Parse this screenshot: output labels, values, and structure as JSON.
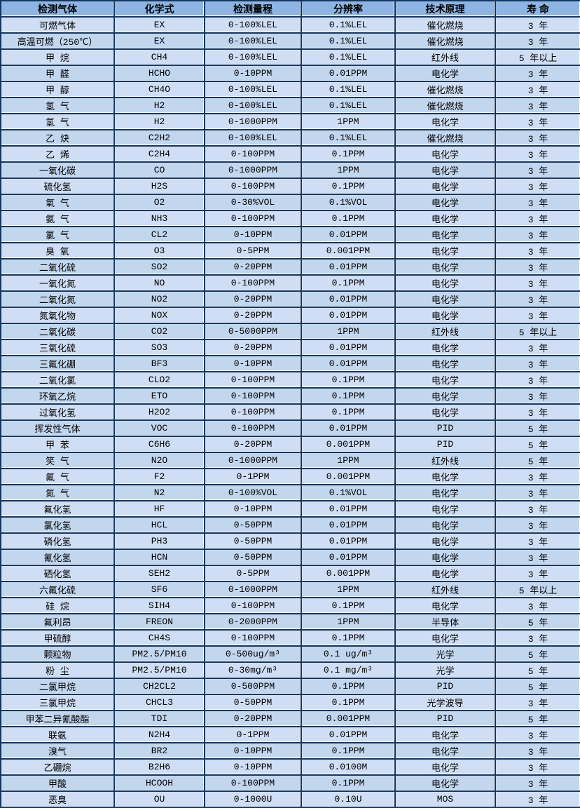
{
  "table": {
    "columns": [
      "检测气体",
      "化学式",
      "检测量程",
      "分辨率",
      "技术原理",
      "寿 命"
    ],
    "column_keys": [
      "gas",
      "formula",
      "range",
      "resolution",
      "principle",
      "lifetime"
    ],
    "colors": {
      "header_bg": "#8db4e2",
      "row_light_bg": "#cfdef4",
      "row_dark_bg": "#c2d6ee",
      "border": "#16365d",
      "grid_highlight": "#ffffff",
      "text": "#000000"
    },
    "rows": [
      [
        "可燃气体",
        "EX",
        "0-100%LEL",
        "0.1%LEL",
        "催化燃烧",
        "3 年"
      ],
      [
        "高温可燃（250℃）",
        "EX",
        "0-100%LEL",
        "0.1%LEL",
        "催化燃烧",
        "3 年"
      ],
      [
        "甲 烷",
        "CH4",
        "0-100%LEL",
        "0.1%LEL",
        "红外线",
        "5 年以上"
      ],
      [
        "甲 醛",
        "HCHO",
        "0-10PPM",
        "0.01PPM",
        "电化学",
        "3 年"
      ],
      [
        "甲 醇",
        "CH4O",
        "0-100%LEL",
        "0.1%LEL",
        "催化燃烧",
        "3 年"
      ],
      [
        "氢 气",
        "H2",
        "0-100%LEL",
        "0.1%LEL",
        "催化燃烧",
        "3 年"
      ],
      [
        "氢 气",
        "H2",
        "0-1000PPM",
        "1PPM",
        "电化学",
        "3 年"
      ],
      [
        "乙 炔",
        "C2H2",
        "0-100%LEL",
        "0.1%LEL",
        "催化燃烧",
        "3 年"
      ],
      [
        "乙 烯",
        "C2H4",
        "0-100PPM",
        "0.1PPM",
        "电化学",
        "3 年"
      ],
      [
        "一氧化碳",
        "CO",
        "0-1000PPM",
        "1PPM",
        "电化学",
        "3 年"
      ],
      [
        "硫化氢",
        "H2S",
        "0-100PPM",
        "0.1PPM",
        "电化学",
        "3 年"
      ],
      [
        "氧 气",
        "O2",
        "0-30%VOL",
        "0.1%VOL",
        "电化学",
        "3 年"
      ],
      [
        "氨 气",
        "NH3",
        "0-100PPM",
        "0.1PPM",
        "电化学",
        "3 年"
      ],
      [
        "氯 气",
        "CL2",
        "0-10PPM",
        "0.01PPM",
        "电化学",
        "3 年"
      ],
      [
        "臭 氧",
        "O3",
        "0-5PPM",
        "0.001PPM",
        "电化学",
        "3 年"
      ],
      [
        "二氧化硫",
        "SO2",
        "0-20PPM",
        "0.01PPM",
        "电化学",
        "3 年"
      ],
      [
        "一氧化氮",
        "NO",
        "0-100PPM",
        "0.1PPM",
        "电化学",
        "3 年"
      ],
      [
        "二氧化氮",
        "NO2",
        "0-20PPM",
        "0.01PPM",
        "电化学",
        "3 年"
      ],
      [
        "氮氧化物",
        "NOX",
        "0-20PPM",
        "0.01PPM",
        "电化学",
        "3 年"
      ],
      [
        "二氧化碳",
        "CO2",
        "0-5000PPM",
        "1PPM",
        "红外线",
        "5 年以上"
      ],
      [
        "三氧化硫",
        "SO3",
        "0-20PPM",
        "0.01PPM",
        "电化学",
        "3 年"
      ],
      [
        "三氟化硼",
        "BF3",
        "0-10PPM",
        "0.01PPM",
        "电化学",
        "3 年"
      ],
      [
        "二氧化氯",
        "CLO2",
        "0-100PPM",
        "0.1PPM",
        "电化学",
        "3 年"
      ],
      [
        "环氧乙烷",
        "ETO",
        "0-100PPM",
        "0.1PPM",
        "电化学",
        "3 年"
      ],
      [
        "过氧化氢",
        "H2O2",
        "0-100PPM",
        "0.1PPM",
        "电化学",
        "3 年"
      ],
      [
        "挥发性气体",
        "VOC",
        "0-100PPM",
        "0.01PPM",
        "PID",
        "5 年"
      ],
      [
        "甲 苯",
        "C6H6",
        "0-20PPM",
        "0.001PPM",
        "PID",
        "5 年"
      ],
      [
        "笑 气",
        "N2O",
        "0-1000PPM",
        "1PPM",
        "红外线",
        "5 年"
      ],
      [
        "氟 气",
        "F2",
        "0-1PPM",
        "0.001PPM",
        "电化学",
        "3 年"
      ],
      [
        "氮 气",
        "N2",
        "0-100%VOL",
        "0.1%VOL",
        "电化学",
        "3 年"
      ],
      [
        "氟化氢",
        "HF",
        "0-10PPM",
        "0.01PPM",
        "电化学",
        "3 年"
      ],
      [
        "氯化氢",
        "HCL",
        "0-50PPM",
        "0.01PPM",
        "电化学",
        "3 年"
      ],
      [
        "磷化氢",
        "PH3",
        "0-50PPM",
        "0.01PPM",
        "电化学",
        "3 年"
      ],
      [
        "氰化氢",
        "HCN",
        "0-50PPM",
        "0.01PPM",
        "电化学",
        "3 年"
      ],
      [
        "硒化氢",
        "SEH2",
        "0-5PPM",
        "0.001PPM",
        "电化学",
        "3 年"
      ],
      [
        "六氟化硫",
        "SF6",
        "0-1000PPM",
        "1PPM",
        "红外线",
        "5 年以上"
      ],
      [
        "硅 烷",
        "SIH4",
        "0-100PPM",
        "0.1PPM",
        "电化学",
        "3 年"
      ],
      [
        "氟利昂",
        "FREON",
        "0-2000PPM",
        "1PPM",
        "半导体",
        "5 年"
      ],
      [
        "甲硫醇",
        "CH4S",
        "0-100PPM",
        "0.1PPM",
        "电化学",
        "3 年"
      ],
      [
        "颗粒物",
        "PM2.5/PM10",
        "0-500ug/m³",
        "0.1 ug/m³",
        "光学",
        "5 年"
      ],
      [
        "粉 尘",
        "PM2.5/PM10",
        "0-30mg/m³",
        "0.1 mg/m³",
        "光学",
        "5 年"
      ],
      [
        "二氯甲烷",
        "CH2CL2",
        "0-500PPM",
        "0.1PPM",
        "PID",
        "5 年"
      ],
      [
        "三氯甲烷",
        "CHCL3",
        "0-50PPM",
        "0.1PPM",
        "光学波导",
        "3 年"
      ],
      [
        "甲苯二异氰酸酯",
        "TDI",
        "0-20PPM",
        "0.001PPM",
        "PID",
        "5 年"
      ],
      [
        "联氨",
        "N2H4",
        "0-1PPM",
        "0.01PPM",
        "电化学",
        "3 年"
      ],
      [
        "溴气",
        "BR2",
        "0-10PPM",
        "0.1PPM",
        "电化学",
        "3 年"
      ],
      [
        "乙硼烷",
        "B2H6",
        "0-10PPM",
        "0.0100M",
        "电化学",
        "3 年"
      ],
      [
        "甲酸",
        "HCOOH",
        "0-100PPM",
        "0.1PPM",
        "电化学",
        "3 年"
      ],
      [
        "恶臭",
        "OU",
        "0-1000U",
        "0.10U",
        "MOS",
        "3 年"
      ]
    ]
  }
}
